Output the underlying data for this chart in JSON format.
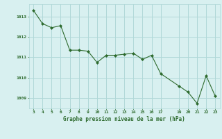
{
  "x": [
    3,
    4,
    5,
    6,
    7,
    8,
    9,
    10,
    11,
    12,
    13,
    14,
    15,
    16,
    17,
    19,
    20,
    21,
    22,
    23
  ],
  "y": [
    1013.3,
    1012.65,
    1012.45,
    1012.55,
    1011.35,
    1011.35,
    1011.3,
    1010.75,
    1011.1,
    1011.1,
    1011.15,
    1011.2,
    1010.9,
    1011.1,
    1010.2,
    1009.6,
    1009.3,
    1008.75,
    1010.1,
    1009.1
  ],
  "line_color": "#2d6a2d",
  "marker_color": "#2d6a2d",
  "bg_color": "#d8f0f0",
  "grid_color": "#b0d8d8",
  "xlabel": "Graphe pression niveau de la mer (hPa)",
  "xlabel_color": "#2d6a2d",
  "tick_color": "#2d6a2d",
  "yticks": [
    1009,
    1010,
    1011,
    1012,
    1013
  ],
  "xticks": [
    3,
    4,
    5,
    6,
    7,
    8,
    9,
    10,
    11,
    12,
    13,
    14,
    15,
    16,
    17,
    19,
    20,
    21,
    22,
    23
  ],
  "ylim": [
    1008.5,
    1013.6
  ],
  "xlim": [
    2.5,
    23.5
  ]
}
